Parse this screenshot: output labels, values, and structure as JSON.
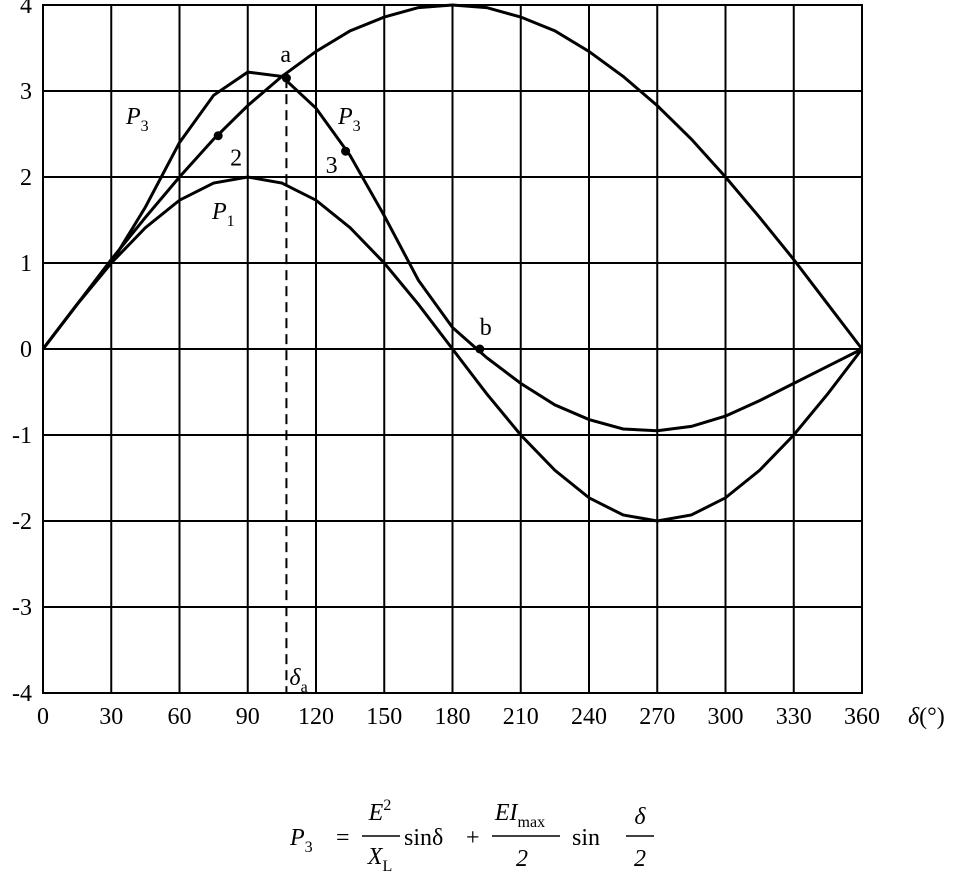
{
  "chart_data": {
    "type": "line",
    "x_label": {
      "text": "δ",
      "unit": "(°)"
    },
    "x": [
      0,
      15,
      30,
      45,
      60,
      75,
      90,
      105,
      120,
      135,
      150,
      165,
      180,
      195,
      210,
      225,
      240,
      255,
      270,
      285,
      300,
      315,
      330,
      345,
      360
    ],
    "series": [
      {
        "color": "#000000",
        "values": [
          0,
          0.52,
          1,
          1.41,
          1.73,
          1.93,
          2,
          1.93,
          1.73,
          1.41,
          1,
          0.52,
          0,
          -0.52,
          -1,
          -1.41,
          -1.73,
          -1.93,
          -2,
          -1.93,
          -1.73,
          -1.41,
          -1,
          -0.52,
          0
        ]
      },
      {
        "color": "#000000",
        "values": [
          0,
          0.52,
          1.04,
          1.53,
          2,
          2.44,
          2.83,
          3.17,
          3.46,
          3.7,
          3.86,
          3.97,
          4,
          3.97,
          3.86,
          3.7,
          3.46,
          3.17,
          2.83,
          2.44,
          2,
          1.53,
          1.04,
          0.52,
          0
        ]
      },
      {
        "color": "#000000",
        "values": [
          0,
          0.52,
          1,
          1.65,
          2.4,
          2.95,
          3.22,
          3.17,
          2.8,
          2.25,
          1.55,
          0.8,
          0.25,
          -0.1,
          -0.4,
          -0.65,
          -0.82,
          -0.93,
          -0.95,
          -0.9,
          -0.78,
          -0.6,
          -0.4,
          -0.2,
          0
        ]
      }
    ],
    "curve_labels": [
      {
        "text": "P",
        "sub": "3"
      },
      {
        "text": "P",
        "sub": "3"
      },
      {
        "text": "P",
        "sub": "1"
      }
    ],
    "points": [
      {
        "label": "2",
        "x": 77,
        "y": 2.48
      },
      {
        "label": "a",
        "x": 107,
        "y": 3.15
      },
      {
        "label": "3",
        "x": 133,
        "y": 2.3
      },
      {
        "label": "b",
        "x": 192,
        "y": 0
      }
    ],
    "delta_a": {
      "text": "δ",
      "sub": "a"
    },
    "xlim": [
      0,
      360
    ],
    "xticks": [
      0,
      30,
      60,
      90,
      120,
      150,
      180,
      210,
      240,
      270,
      300,
      330,
      360
    ],
    "ylim": [
      -4,
      4
    ],
    "yticks": [
      -4,
      -3,
      -2,
      -1,
      0,
      1,
      2,
      3,
      4
    ],
    "grid": true,
    "formula": {
      "lhs": "P",
      "lhs_sub": "3",
      "eq": "=",
      "f1_num": "E",
      "f1_num_sup": "2",
      "f1_den": "X",
      "f1_den_sub": "L",
      "term1": "sinδ",
      "plus": "+",
      "f2_num": "EI",
      "f2_num_sub": "max",
      "f2_den": "2",
      "term2": "sin",
      "f3_num": "δ",
      "f3_den": "2"
    }
  }
}
